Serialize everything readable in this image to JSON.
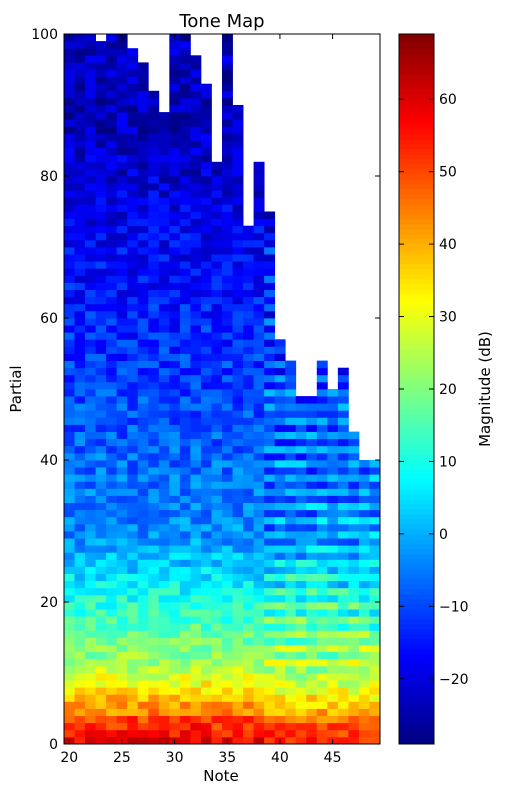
{
  "chart_data": [
    {
      "type": "heatmap",
      "title": "Tone Map",
      "xlabel": "Note",
      "ylabel": "Partial",
      "xlim": [
        19.5,
        49.5
      ],
      "ylim": [
        0,
        100
      ],
      "x_ticks": [
        20,
        25,
        30,
        35,
        40,
        45
      ],
      "y_ticks": [
        0,
        20,
        40,
        60,
        80,
        100
      ],
      "notes": [
        20,
        21,
        22,
        23,
        24,
        25,
        26,
        27,
        28,
        29,
        30,
        31,
        32,
        33,
        34,
        35,
        36,
        37,
        38,
        39,
        40,
        41,
        42,
        43,
        44,
        45,
        46,
        47,
        48,
        49
      ],
      "partial_counts": [
        100,
        100,
        100,
        99,
        100,
        100,
        98,
        96,
        92,
        89,
        100,
        100,
        97,
        93,
        82,
        100,
        90,
        73,
        82,
        75,
        57,
        54,
        49,
        49,
        54,
        50,
        53,
        44,
        40,
        40
      ],
      "colormap": "jet",
      "value_range": [
        -29,
        69
      ],
      "unit": "dB"
    },
    {
      "type": "colorbar",
      "label": "Magnitude (dB)",
      "ticks": [
        -20,
        -10,
        0,
        10,
        20,
        30,
        40,
        50,
        60
      ],
      "range": [
        -29,
        69
      ],
      "colormap": "jet"
    }
  ]
}
